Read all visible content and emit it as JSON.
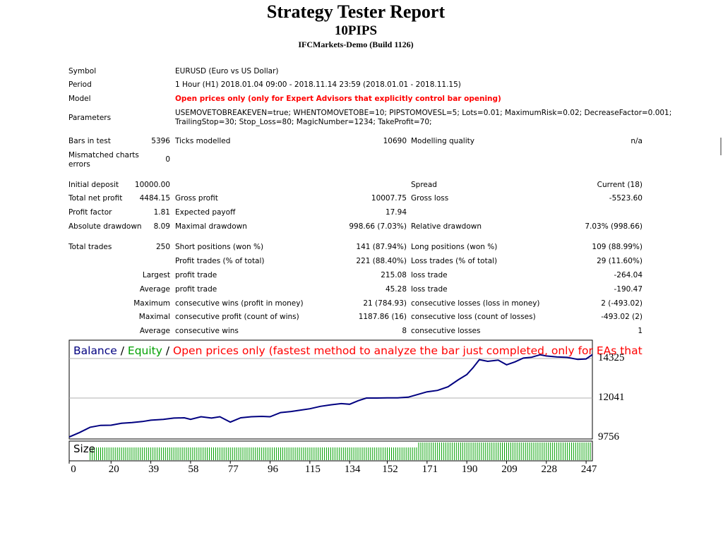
{
  "report": {
    "title": "Strategy Tester Report",
    "subtitle": "10PIPS",
    "server": "IFCMarkets-Demo (Build 1126)"
  },
  "info": {
    "symbol_label": "Symbol",
    "symbol_value": "EURUSD (Euro vs US Dollar)",
    "period_label": "Period",
    "period_value": "1 Hour (H1) 2018.01.04 09:00 - 2018.11.14 23:59 (2018.01.01 - 2018.11.15)",
    "model_label": "Model",
    "model_value": "Open prices only (only for Expert Advisors that explicitly control bar opening)",
    "parameters_label": "Parameters",
    "parameters_line1": "USEMOVETOBREAKEVEN=true; WHENTOMOVETOBE=10; PIPSTOMOVESL=5; Lots=0.01; MaximumRisk=0.02; DecreaseFactor=0.001;",
    "parameters_line2": "TrailingStop=30; Stop_Loss=80; MagicNumber=1234; TakeProfit=70;"
  },
  "stats": {
    "bars_in_test_label": "Bars in test",
    "bars_in_test": "5396",
    "ticks_modelled_label": "Ticks modelled",
    "ticks_modelled": "10690",
    "modelling_quality_label": "Modelling quality",
    "modelling_quality": "n/a",
    "mismatched_label_1": "Mismatched charts",
    "mismatched_label_2": "errors",
    "mismatched": "0",
    "initial_deposit_label": "Initial deposit",
    "initial_deposit": "10000.00",
    "spread_label": "Spread",
    "spread": "Current (18)",
    "total_net_profit_label": "Total net profit",
    "total_net_profit": "4484.15",
    "gross_profit_label": "Gross profit",
    "gross_profit": "10007.75",
    "gross_loss_label": "Gross loss",
    "gross_loss": "-5523.60",
    "profit_factor_label": "Profit factor",
    "profit_factor": "1.81",
    "expected_payoff_label": "Expected payoff",
    "expected_payoff": "17.94",
    "absolute_drawdown_label": "Absolute drawdown",
    "absolute_drawdown": "8.09",
    "maximal_drawdown_label": "Maximal drawdown",
    "maximal_drawdown": "998.66 (7.03%)",
    "relative_drawdown_label": "Relative drawdown",
    "relative_drawdown": "7.03% (998.66)",
    "total_trades_label": "Total trades",
    "total_trades": "250",
    "short_positions_label": "Short positions (won %)",
    "short_positions": "141 (87.94%)",
    "long_positions_label": "Long positions (won %)",
    "long_positions": "109 (88.99%)",
    "profit_trades_label": "Profit trades (% of total)",
    "profit_trades": "221 (88.40%)",
    "loss_trades_label": "Loss trades (% of total)",
    "loss_trades": "29 (11.60%)",
    "largest_label": "Largest",
    "largest_profit_label": "profit trade",
    "largest_profit": "215.08",
    "largest_loss_label": "loss trade",
    "largest_loss": "-264.04",
    "average_label": "Average",
    "average_profit_label": "profit trade",
    "average_profit": "45.28",
    "average_loss_label": "loss trade",
    "average_loss": "-190.47",
    "maximum_label": "Maximum",
    "max_cons_wins_label": "consecutive wins (profit in money)",
    "max_cons_wins": "21 (784.93)",
    "max_cons_losses_label": "consecutive losses (loss in money)",
    "max_cons_losses": "2 (-493.02)",
    "maximal_label": "Maximal",
    "maximal_cons_profit_label": "consecutive profit (count of wins)",
    "maximal_cons_profit": "1187.86 (16)",
    "maximal_cons_loss_label": "consecutive loss (count of losses)",
    "maximal_cons_loss": "-493.02 (2)",
    "average2_label": "Average",
    "avg_cons_wins_label": "consecutive wins",
    "avg_cons_wins": "8",
    "avg_cons_losses_label": "consecutive losses",
    "avg_cons_losses": "1"
  },
  "chart_data": {
    "type": "line",
    "legend": {
      "balance": "Balance",
      "sep1": " / ",
      "equity": "Equity",
      "sep2": " / ",
      "model": "Open prices only (fastest method to analyze the bar just completed, only for EAs that"
    },
    "colors": {
      "balance": "#000080",
      "equity": "#00a000",
      "model": "#ff0000",
      "size": "#00a000"
    },
    "y_ticks": [
      14325,
      12041,
      9756
    ],
    "x_ticks": [
      0,
      20,
      39,
      58,
      77,
      96,
      115,
      134,
      152,
      171,
      190,
      209,
      228,
      247
    ],
    "xlim": [
      0,
      250
    ],
    "ylim": [
      9756,
      14325
    ],
    "size_label": "Size",
    "balance_points": [
      [
        0,
        9790
      ],
      [
        5,
        10050
      ],
      [
        10,
        10350
      ],
      [
        15,
        10460
      ],
      [
        20,
        10470
      ],
      [
        25,
        10580
      ],
      [
        30,
        10620
      ],
      [
        35,
        10680
      ],
      [
        39,
        10760
      ],
      [
        45,
        10810
      ],
      [
        50,
        10880
      ],
      [
        55,
        10900
      ],
      [
        58,
        10810
      ],
      [
        63,
        10960
      ],
      [
        68,
        10880
      ],
      [
        72,
        10960
      ],
      [
        77,
        10650
      ],
      [
        82,
        10900
      ],
      [
        87,
        10960
      ],
      [
        92,
        10980
      ],
      [
        96,
        10960
      ],
      [
        101,
        11200
      ],
      [
        106,
        11260
      ],
      [
        110,
        11330
      ],
      [
        115,
        11420
      ],
      [
        120,
        11560
      ],
      [
        125,
        11650
      ],
      [
        130,
        11720
      ],
      [
        134,
        11680
      ],
      [
        138,
        11880
      ],
      [
        142,
        12040
      ],
      [
        147,
        12040
      ],
      [
        152,
        12050
      ],
      [
        157,
        12050
      ],
      [
        162,
        12090
      ],
      [
        166,
        12230
      ],
      [
        171,
        12400
      ],
      [
        176,
        12480
      ],
      [
        181,
        12690
      ],
      [
        186,
        13100
      ],
      [
        190,
        13400
      ],
      [
        193,
        13800
      ],
      [
        196,
        14260
      ],
      [
        200,
        14160
      ],
      [
        205,
        14230
      ],
      [
        209,
        13960
      ],
      [
        213,
        14130
      ],
      [
        217,
        14350
      ],
      [
        221,
        14400
      ],
      [
        225,
        14540
      ],
      [
        228,
        14470
      ],
      [
        233,
        14420
      ],
      [
        238,
        14390
      ],
      [
        243,
        14270
      ],
      [
        247,
        14300
      ],
      [
        250,
        14550
      ]
    ]
  }
}
